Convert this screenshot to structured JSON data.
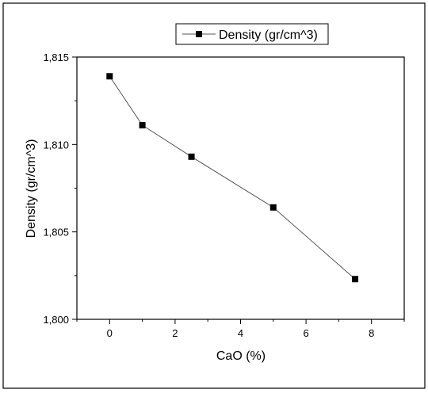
{
  "chart_data": {
    "type": "line",
    "title": "",
    "xlabel": "CaO (%)",
    "ylabel": "Density (gr/cm^3)",
    "xlim": [
      -1,
      9
    ],
    "ylim": [
      1.8,
      1.815
    ],
    "x_ticks": [
      0,
      2,
      4,
      6,
      8
    ],
    "x_tick_labels": [
      "0",
      "2",
      "4",
      "6",
      "8"
    ],
    "y_ticks": [
      1.8,
      1.805,
      1.81,
      1.815
    ],
    "y_tick_labels": [
      "1,800",
      "1,805",
      "1,810",
      "1,815"
    ],
    "grid": false,
    "legend_position": "top-right",
    "series": [
      {
        "name": "Density (gr/cm^3)",
        "marker": "square",
        "color": "#000000",
        "line_color": "#555555",
        "x": [
          0,
          1,
          2.5,
          5,
          7.5
        ],
        "y": [
          1.8139,
          1.8111,
          1.8093,
          1.8064,
          1.8023
        ]
      }
    ]
  }
}
